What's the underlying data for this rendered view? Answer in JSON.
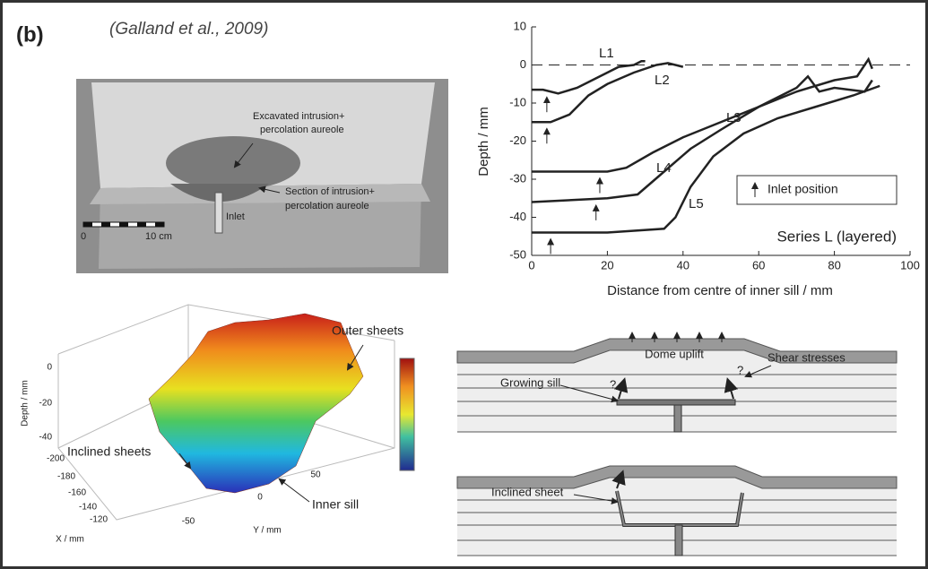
{
  "panel_label": "(b)",
  "citation": "(Galland et al., 2009)",
  "photo": {
    "labels": [
      "Excavated intrusion+",
      "percolation aureole",
      "Section of intrusion+",
      "percolation aureole",
      "Inlet"
    ],
    "scale": [
      "0",
      "10 cm"
    ]
  },
  "chart_data": {
    "type": "line",
    "xlabel": "Distance from centre of inner sill / mm",
    "ylabel": "Depth / mm",
    "annotation": "Series L (layered)",
    "legend": "Inlet position",
    "xlim": [
      0,
      100
    ],
    "ylim": [
      -50,
      10
    ],
    "xticks": [
      0,
      20,
      40,
      60,
      80,
      100
    ],
    "yticks": [
      -50,
      -40,
      -30,
      -20,
      -10,
      0,
      10
    ],
    "reference_line": 0,
    "series": [
      {
        "name": "L1",
        "color": "#222222",
        "x": [
          0,
          3,
          7,
          12,
          18,
          23,
          27,
          29,
          30
        ],
        "values": [
          -6.5,
          -6.5,
          -7.5,
          -6,
          -3,
          -0.5,
          0,
          1,
          1
        ],
        "inlet_x": 4
      },
      {
        "name": "L2",
        "color": "#222222",
        "x": [
          0,
          5,
          10,
          15,
          20,
          27,
          33,
          36,
          40
        ],
        "values": [
          -15,
          -15,
          -13,
          -8,
          -5,
          -2,
          0,
          0.5,
          -0.5
        ],
        "inlet_x": 4
      },
      {
        "name": "L3",
        "color": "#222222",
        "x": [
          0,
          10,
          20,
          25,
          32,
          40,
          50,
          60,
          70,
          80,
          86,
          88,
          89,
          90
        ],
        "values": [
          -28,
          -28,
          -28,
          -27,
          -23,
          -19,
          -15,
          -11,
          -7,
          -4,
          -3,
          0,
          1.5,
          -1
        ],
        "inlet_x": 18
      },
      {
        "name": "L4",
        "color": "#222222",
        "x": [
          0,
          20,
          28,
          35,
          42,
          50,
          60,
          70,
          73,
          76,
          80,
          88,
          90
        ],
        "values": [
          -36,
          -35,
          -34,
          -28,
          -22,
          -17,
          -11,
          -6,
          -3,
          -7,
          -6,
          -7,
          -4
        ],
        "inlet_x": 17
      },
      {
        "name": "L5",
        "color": "#222222",
        "x": [
          0,
          20,
          35,
          38,
          42,
          48,
          56,
          65,
          75,
          85,
          92
        ],
        "values": [
          -44,
          -44,
          -43,
          -40,
          -32,
          -24,
          -18,
          -14,
          -11,
          -8,
          -5.5
        ],
        "inlet_x": 5
      }
    ]
  },
  "surface_plot": {
    "zlabel": "Depth / mm",
    "xlabel": "X / mm",
    "ylabel": "Y / mm",
    "z_ticks": [
      "0",
      "-20",
      "-40"
    ],
    "x_ticks": [
      "-200",
      "-180",
      "-160",
      "-140",
      "-120"
    ],
    "y_ticks": [
      "-50",
      "0",
      "50"
    ],
    "annotations": [
      "Outer sheets",
      "Inclined sheets",
      "Inner sill"
    ]
  },
  "sections": {
    "labels": [
      "Dome uplift",
      "Shear stresses",
      "Growing sill",
      "?",
      "?",
      "Inclined sheet"
    ]
  }
}
